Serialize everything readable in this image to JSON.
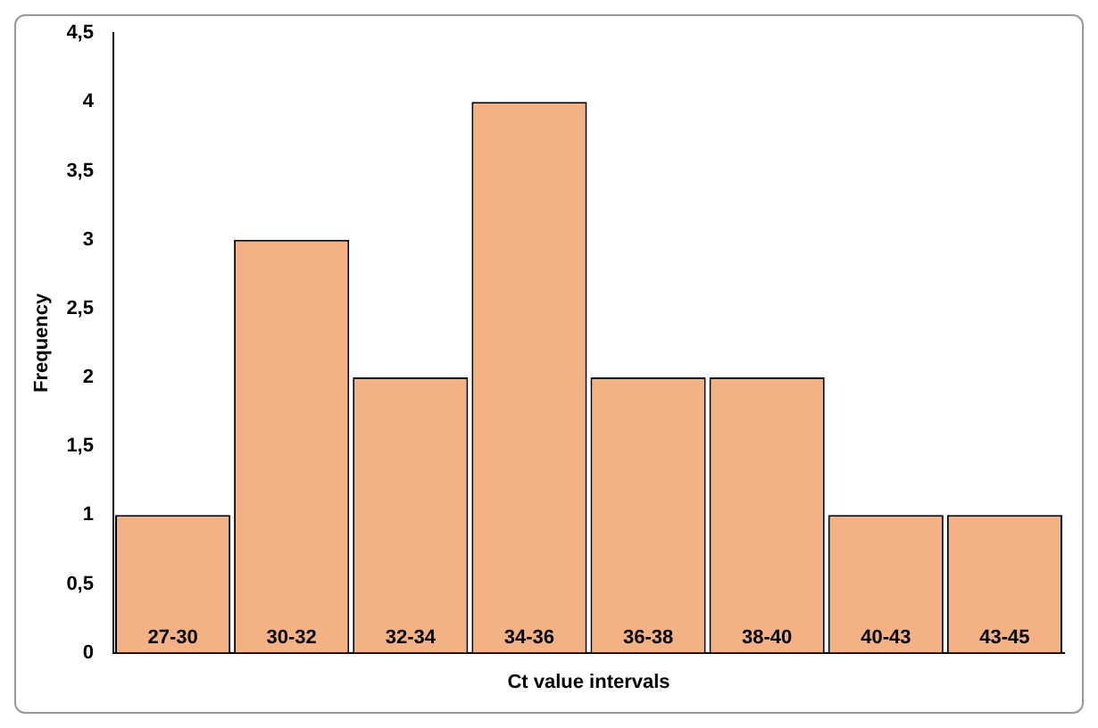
{
  "chart_data": {
    "type": "bar",
    "xlabel": "Ct value intervals",
    "ylabel": "Frequency",
    "categories": [
      "27-30",
      "30-32",
      "32-34",
      "34-36",
      "36-38",
      "38-40",
      "40-43",
      "43-45"
    ],
    "values": [
      1,
      3,
      2,
      4,
      2,
      2,
      1,
      1
    ],
    "color": "#f4b183",
    "ylim": [
      0,
      4.5
    ],
    "yticks": [
      0,
      {
        "value": 0.5,
        "label": "0,5"
      },
      1,
      {
        "value": 1.5,
        "label": "1,5"
      },
      2,
      {
        "value": 2.5,
        "label": "2,5"
      },
      3,
      {
        "value": 3.5,
        "label": "3,5"
      },
      4,
      {
        "value": 4.5,
        "label": "4,5"
      }
    ],
    "grid": false,
    "legend": false
  }
}
